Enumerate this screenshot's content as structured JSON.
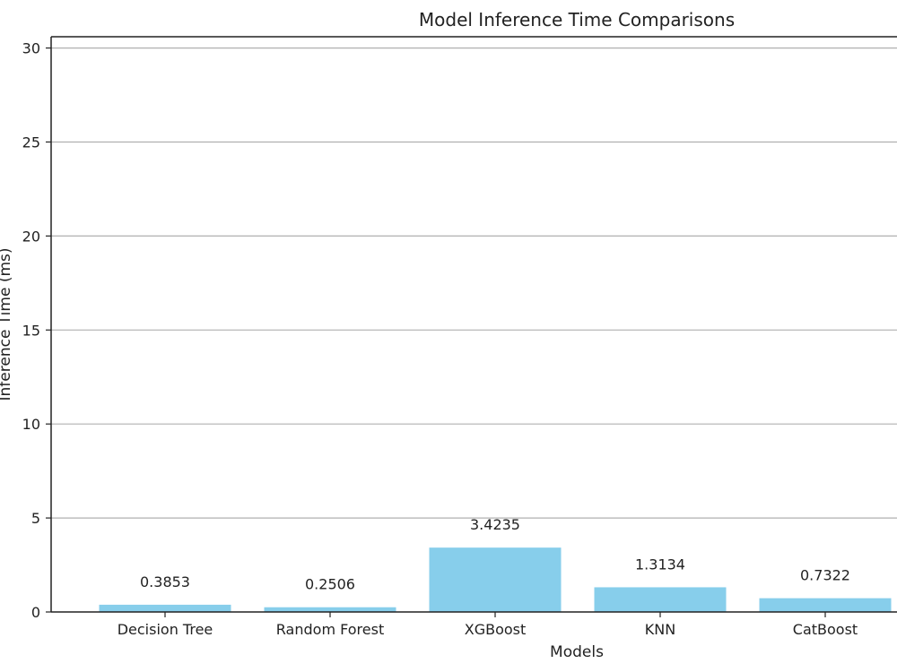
{
  "chart_data": {
    "type": "bar",
    "title": "Model Inference Time Comparisons",
    "xlabel": "Models",
    "ylabel": "Inference Time (ms)",
    "categories": [
      "Decision Tree",
      "Random Forest",
      "XGBoost",
      "KNN",
      "CatBoost"
    ],
    "values": [
      0.3853,
      0.2506,
      3.4235,
      1.3134,
      0.7322
    ],
    "data_labels": [
      "0.3853",
      "0.2506",
      "3.4235",
      "1.3134",
      "0.7322"
    ],
    "ylim": [
      0,
      30.6
    ],
    "yticks": [
      0,
      5,
      10,
      15,
      20,
      25,
      30
    ],
    "grid": "y",
    "bar_color": "#87CEEB"
  }
}
